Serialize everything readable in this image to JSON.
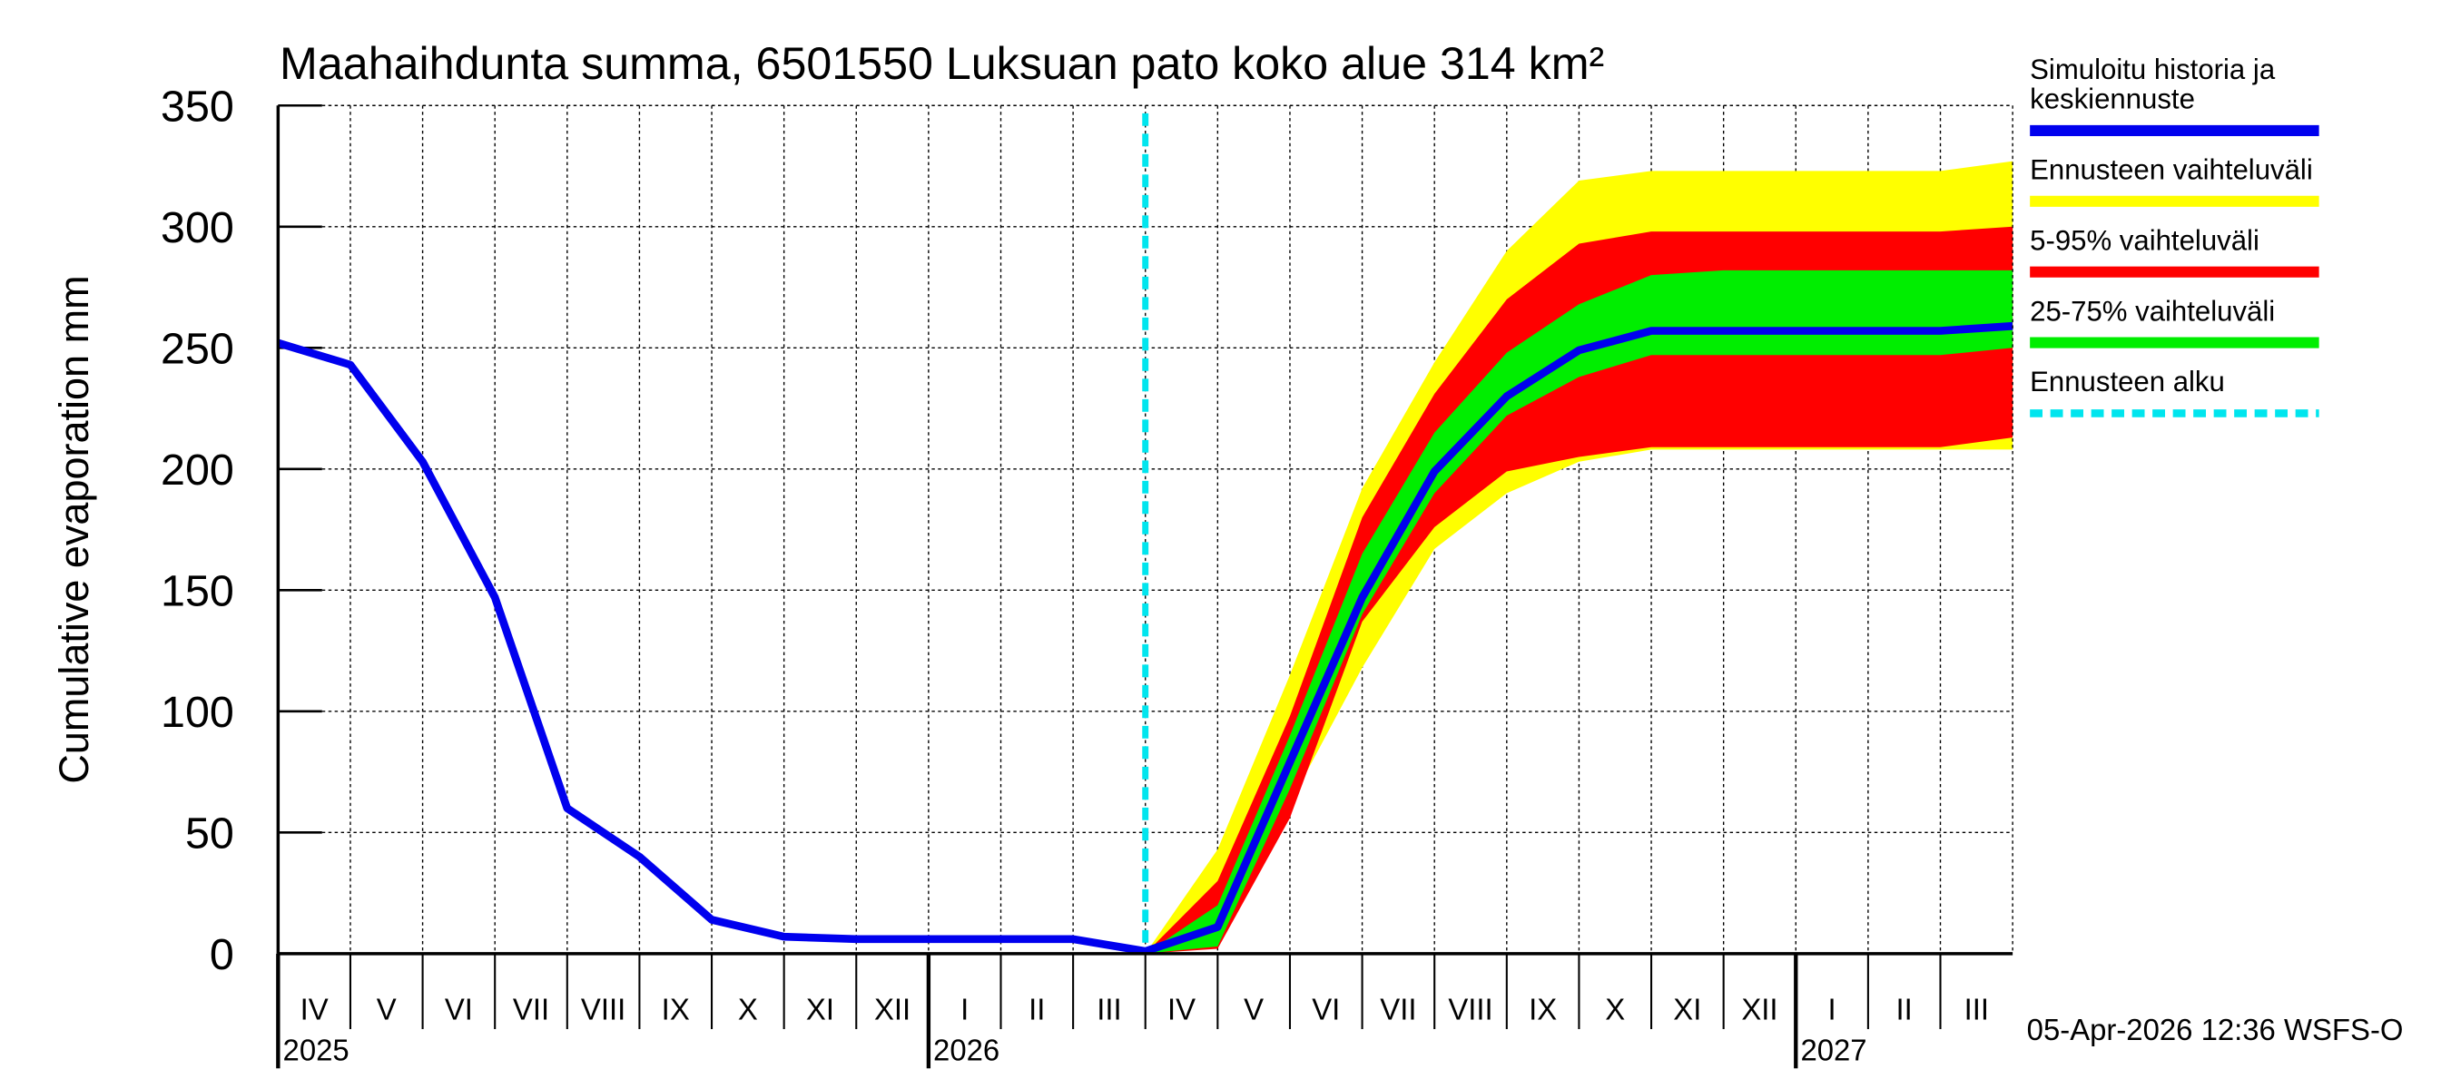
{
  "chart_data": {
    "type": "line",
    "title": "Maahaihdunta summa, 6501550 Luksuan pato koko alue 314 km²",
    "y_label": "Cumulative evaporation   mm",
    "footer": "05-Apr-2026 12:36 WSFS-O",
    "x": [
      "2025-04",
      "2025-05",
      "2025-06",
      "2025-07",
      "2025-08",
      "2025-09",
      "2025-10",
      "2025-11",
      "2025-12",
      "2026-01",
      "2026-02",
      "2026-03",
      "2026-04",
      "2026-05",
      "2026-06",
      "2026-07",
      "2026-08",
      "2026-09",
      "2026-10",
      "2026-11",
      "2026-12",
      "2027-01",
      "2027-02",
      "2027-03",
      "2027-04"
    ],
    "xlim": [
      "2025-04",
      "2027-04"
    ],
    "xticks": [
      {
        "value": "2025-04",
        "label": "IV"
      },
      {
        "value": "2025-05",
        "label": "V"
      },
      {
        "value": "2025-06",
        "label": "VI"
      },
      {
        "value": "2025-07",
        "label": "VII"
      },
      {
        "value": "2025-08",
        "label": "VIII"
      },
      {
        "value": "2025-09",
        "label": "IX"
      },
      {
        "value": "2025-10",
        "label": "X"
      },
      {
        "value": "2025-11",
        "label": "XI"
      },
      {
        "value": "2025-12",
        "label": "XII"
      },
      {
        "value": "2026-01",
        "label": "I"
      },
      {
        "value": "2026-02",
        "label": "II"
      },
      {
        "value": "2026-03",
        "label": "III"
      },
      {
        "value": "2026-04",
        "label": "IV"
      },
      {
        "value": "2026-05",
        "label": "V"
      },
      {
        "value": "2026-06",
        "label": "VI"
      },
      {
        "value": "2026-07",
        "label": "VII"
      },
      {
        "value": "2026-08",
        "label": "VIII"
      },
      {
        "value": "2026-09",
        "label": "IX"
      },
      {
        "value": "2026-10",
        "label": "X"
      },
      {
        "value": "2026-11",
        "label": "XI"
      },
      {
        "value": "2026-12",
        "label": "XII"
      },
      {
        "value": "2027-01",
        "label": "I"
      },
      {
        "value": "2027-02",
        "label": "II"
      },
      {
        "value": "2027-03",
        "label": "III"
      }
    ],
    "year_labels": [
      {
        "value": "2025-04",
        "label": "2025"
      },
      {
        "value": "2026-01",
        "label": "2026"
      },
      {
        "value": "2027-01",
        "label": "2027"
      }
    ],
    "ylim": [
      0,
      350
    ],
    "yticks": [
      0,
      50,
      100,
      150,
      200,
      250,
      300,
      350
    ],
    "grid": true,
    "forecast_start": {
      "value": "2026-04",
      "name": "Ennusteen alku",
      "color": "#00e5ee"
    },
    "bands": [
      {
        "name": "Ennusteen vaihteluväli",
        "color": "#ffff00",
        "low": [
          null,
          null,
          null,
          null,
          null,
          null,
          null,
          null,
          null,
          null,
          null,
          null,
          0,
          4,
          62,
          118,
          167,
          190,
          203,
          208,
          208,
          208,
          208,
          208,
          208
        ],
        "high": [
          null,
          null,
          null,
          null,
          null,
          null,
          null,
          null,
          null,
          null,
          null,
          null,
          0,
          43,
          115,
          192,
          244,
          290,
          319,
          323,
          323,
          323,
          323,
          323,
          327
        ]
      },
      {
        "name": "5-95% vaihteluväli",
        "color": "#ff0000",
        "low": [
          null,
          null,
          null,
          null,
          null,
          null,
          null,
          null,
          null,
          null,
          null,
          null,
          0,
          2,
          56,
          137,
          176,
          199,
          205,
          209,
          209,
          209,
          209,
          209,
          213
        ],
        "high": [
          null,
          null,
          null,
          null,
          null,
          null,
          null,
          null,
          null,
          null,
          null,
          null,
          0,
          30,
          98,
          180,
          231,
          270,
          293,
          298,
          298,
          298,
          298,
          298,
          300
        ]
      },
      {
        "name": "25-75% vaihteluväli",
        "color": "#00ee00",
        "low": [
          null,
          null,
          null,
          null,
          null,
          null,
          null,
          null,
          null,
          null,
          null,
          null,
          0,
          3,
          68,
          140,
          190,
          222,
          238,
          247,
          247,
          247,
          247,
          247,
          250
        ],
        "high": [
          null,
          null,
          null,
          null,
          null,
          null,
          null,
          null,
          null,
          null,
          null,
          null,
          0,
          20,
          90,
          165,
          215,
          248,
          268,
          280,
          282,
          282,
          282,
          282,
          282
        ]
      }
    ],
    "series": [
      {
        "name": "Simuloitu historia ja keskiennuste",
        "color": "#0000ee",
        "values": [
          252,
          243,
          203,
          147,
          60,
          40,
          14,
          7,
          6,
          6,
          6,
          6,
          1,
          11,
          79,
          147,
          199,
          230,
          249,
          257,
          257,
          257,
          257,
          257,
          259
        ]
      }
    ]
  }
}
